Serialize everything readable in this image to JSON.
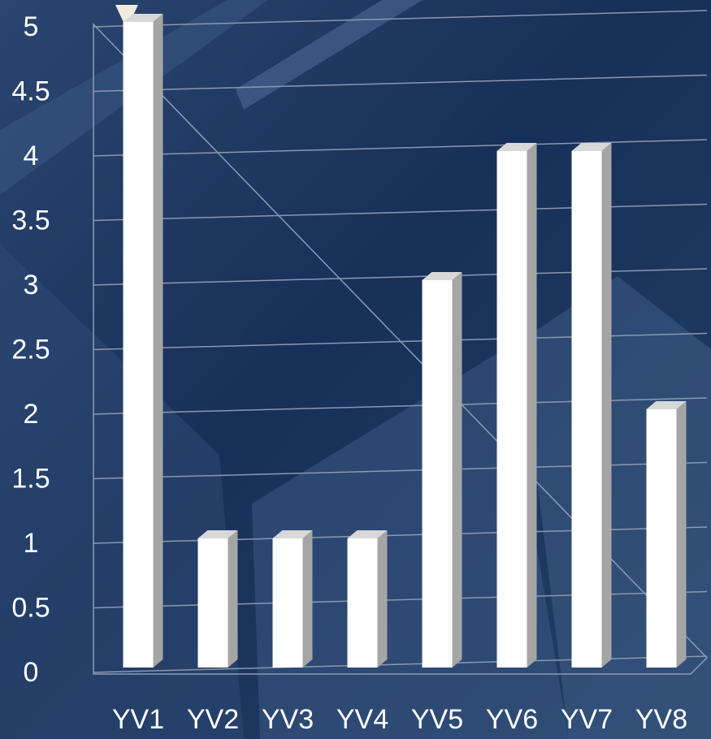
{
  "chart_data": {
    "type": "bar3d",
    "categories": [
      "YV1",
      "YV2",
      "YV3",
      "YV4",
      "YV5",
      "YV6",
      "YV7",
      "YV8"
    ],
    "values": [
      5,
      1,
      1,
      1,
      3,
      4,
      4,
      2
    ],
    "color": "#ffffff",
    "ylim": [
      0,
      5
    ],
    "yticks": [
      0,
      0.5,
      1,
      1.5,
      2,
      2.5,
      3,
      3.5,
      4,
      4.5,
      5
    ],
    "grid": true
  }
}
